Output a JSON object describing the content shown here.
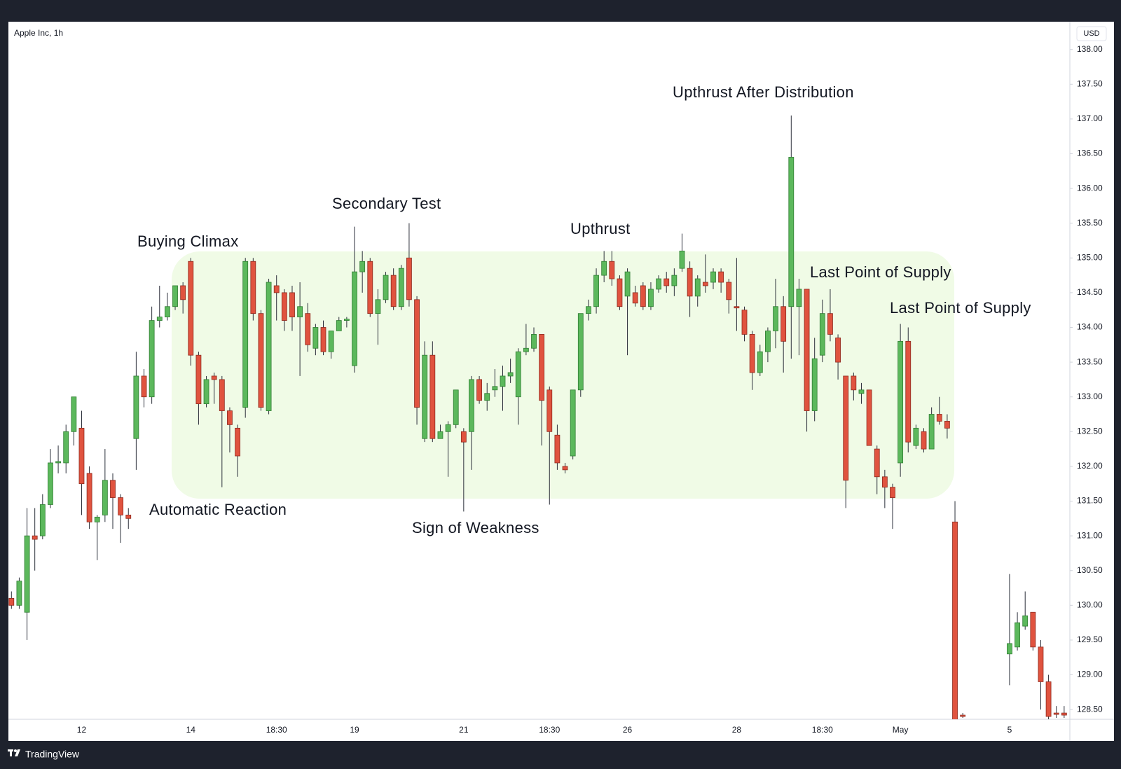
{
  "chart_data": {
    "type": "candlestick",
    "title": "Apple Inc, 1h",
    "currency": "USD",
    "categories": [
      null,
      null,
      null,
      null,
      null,
      null,
      null,
      null,
      null,
      "12",
      null,
      null,
      null,
      null,
      null,
      null,
      null,
      null,
      null,
      null,
      null,
      null,
      null,
      "14",
      null,
      null,
      null,
      null,
      null,
      null,
      null,
      null,
      null,
      null,
      "18:30",
      null,
      null,
      null,
      null,
      null,
      null,
      null,
      null,
      null,
      "19",
      null,
      null,
      null,
      null,
      null,
      null,
      null,
      null,
      null,
      null,
      null,
      null,
      null,
      "21",
      null,
      null,
      null,
      null,
      null,
      null,
      null,
      null,
      null,
      null,
      "18:30",
      null,
      null,
      null,
      null,
      null,
      null,
      null,
      null,
      null,
      "26",
      null,
      null,
      null,
      null,
      null,
      null,
      null,
      null,
      null,
      null,
      null,
      null,
      null,
      "28",
      null,
      null,
      null,
      null,
      null,
      null,
      null,
      null,
      null,
      null,
      "18:30",
      null,
      null,
      null,
      null,
      null,
      null,
      null,
      null,
      null,
      "May",
      null,
      null,
      null,
      null,
      null,
      null,
      null,
      null,
      null,
      null,
      null,
      null,
      null,
      "5",
      null,
      null,
      null,
      null,
      null,
      null,
      null
    ],
    "open": [
      130.1,
      130.0,
      129.9,
      131.0,
      131.0,
      131.45,
      132.05,
      132.05,
      132.5,
      132.55,
      131.9,
      131.2,
      131.3,
      131.8,
      131.55,
      131.3,
      132.4,
      133.3,
      133.0,
      134.1,
      134.15,
      134.3,
      134.6,
      134.95,
      133.6,
      132.9,
      133.3,
      133.25,
      132.8,
      132.55,
      132.85,
      134.95,
      134.2,
      132.8,
      134.6,
      134.5,
      134.5,
      134.15,
      134.2,
      133.7,
      134.0,
      133.65,
      133.95,
      134.1,
      133.45,
      134.8,
      134.95,
      134.2,
      134.4,
      134.75,
      134.3,
      135.0,
      134.4,
      132.4,
      133.6,
      132.4,
      132.5,
      132.6,
      132.5,
      132.5,
      133.25,
      132.95,
      133.1,
      133.15,
      133.3,
      133.0,
      133.65,
      133.7,
      133.9,
      133.1,
      132.45,
      132.0,
      132.15,
      133.1,
      134.2,
      134.3,
      134.75,
      134.95,
      134.7,
      134.45,
      134.5,
      134.6,
      134.3,
      134.55,
      134.7,
      134.6,
      134.85,
      134.85,
      134.45,
      134.65,
      134.65,
      134.8,
      134.65,
      134.3,
      134.25,
      133.9,
      133.35,
      133.65,
      133.95,
      134.3,
      134.3,
      134.3,
      134.55,
      132.8,
      133.6,
      134.2,
      133.85,
      133.3,
      133.3,
      133.05,
      133.1,
      132.25,
      131.85,
      131.7,
      132.05,
      133.8,
      132.3,
      132.5,
      132.25,
      132.75,
      132.65,
      131.2,
      128.42,
      null,
      null,
      null,
      null,
      null,
      129.3,
      129.4,
      129.7,
      129.9,
      129.4,
      128.9,
      128.45,
      128.45
    ],
    "high": [
      130.2,
      130.4,
      131.4,
      131.4,
      131.6,
      132.25,
      132.3,
      132.6,
      133.0,
      132.8,
      132.0,
      131.3,
      132.25,
      131.9,
      131.6,
      131.4,
      133.65,
      133.4,
      134.3,
      134.6,
      134.5,
      134.6,
      134.65,
      135.0,
      133.65,
      133.3,
      133.35,
      133.3,
      132.85,
      132.6,
      135.0,
      135.0,
      134.25,
      134.7,
      134.75,
      134.55,
      134.6,
      134.65,
      134.35,
      134.05,
      134.1,
      133.95,
      134.15,
      134.15,
      135.45,
      135.1,
      135.0,
      134.55,
      134.8,
      134.85,
      134.9,
      135.5,
      134.45,
      133.8,
      133.8,
      132.6,
      132.65,
      133.1,
      132.55,
      133.3,
      133.3,
      133.2,
      133.4,
      133.45,
      133.55,
      133.7,
      134.05,
      134.0,
      133.9,
      133.15,
      132.6,
      132.05,
      133.1,
      134.2,
      134.4,
      134.85,
      135.1,
      135.1,
      134.75,
      134.85,
      134.6,
      134.65,
      134.65,
      134.75,
      134.8,
      134.85,
      135.35,
      134.95,
      134.75,
      135.05,
      134.85,
      134.85,
      134.7,
      135.0,
      134.3,
      133.95,
      133.75,
      134.0,
      134.7,
      134.45,
      137.05,
      134.7,
      134.55,
      133.85,
      134.4,
      134.55,
      133.9,
      133.3,
      133.35,
      133.2,
      133.1,
      132.3,
      131.95,
      131.75,
      134.05,
      134.0,
      132.6,
      132.55,
      132.85,
      133.0,
      132.75,
      131.5,
      128.45,
      null,
      null,
      null,
      null,
      null,
      130.45,
      129.9,
      130.2,
      129.9,
      129.5,
      129.0,
      128.55,
      128.55
    ],
    "low": [
      129.95,
      129.95,
      129.5,
      130.5,
      130.95,
      131.4,
      131.9,
      131.9,
      132.3,
      131.3,
      131.1,
      130.65,
      131.2,
      131.1,
      130.9,
      131.1,
      131.95,
      132.85,
      132.9,
      134.0,
      134.1,
      134.25,
      134.2,
      133.45,
      132.6,
      132.85,
      132.9,
      131.7,
      132.2,
      131.85,
      132.7,
      134.1,
      132.8,
      132.75,
      134.1,
      133.95,
      133.95,
      133.3,
      133.65,
      133.6,
      133.6,
      133.55,
      133.95,
      134.0,
      133.35,
      134.5,
      134.15,
      133.75,
      134.35,
      134.25,
      134.25,
      134.3,
      132.6,
      132.35,
      132.35,
      132.4,
      131.85,
      132.55,
      131.35,
      131.95,
      132.9,
      132.8,
      133.0,
      132.8,
      133.2,
      132.6,
      133.6,
      133.65,
      132.3,
      131.45,
      131.95,
      131.9,
      132.1,
      133.0,
      134.1,
      134.2,
      134.65,
      134.6,
      134.25,
      133.6,
      134.3,
      134.25,
      134.25,
      134.5,
      134.5,
      134.45,
      134.8,
      134.15,
      134.3,
      134.5,
      134.55,
      134.5,
      134.2,
      133.95,
      133.8,
      133.1,
      133.3,
      133.5,
      133.7,
      133.35,
      133.55,
      133.6,
      132.5,
      132.65,
      133.5,
      133.8,
      133.25,
      131.4,
      132.95,
      132.9,
      132.3,
      131.6,
      131.4,
      131.1,
      131.85,
      132.2,
      132.25,
      132.2,
      132.25,
      132.6,
      132.4,
      128.3,
      128.38,
      null,
      null,
      null,
      null,
      null,
      128.85,
      129.35,
      129.65,
      129.35,
      128.5,
      128.35,
      128.38,
      128.38
    ],
    "close": [
      130.0,
      130.35,
      131.0,
      130.95,
      131.45,
      132.05,
      132.07,
      132.5,
      133.0,
      131.75,
      131.2,
      131.27,
      131.8,
      131.55,
      131.3,
      131.25,
      133.3,
      133.0,
      134.1,
      134.15,
      134.3,
      134.6,
      134.4,
      133.6,
      132.9,
      133.25,
      133.25,
      132.8,
      132.6,
      132.15,
      134.95,
      134.2,
      132.85,
      134.65,
      134.5,
      134.1,
      134.15,
      134.3,
      133.75,
      134.0,
      133.65,
      133.95,
      134.1,
      134.12,
      134.8,
      134.95,
      134.2,
      134.4,
      134.75,
      134.3,
      134.85,
      134.4,
      132.85,
      133.6,
      132.4,
      132.5,
      132.6,
      133.1,
      132.35,
      133.25,
      132.95,
      133.05,
      133.15,
      133.3,
      133.35,
      133.65,
      133.7,
      133.9,
      132.95,
      132.5,
      132.05,
      131.95,
      133.1,
      134.2,
      134.3,
      134.75,
      134.95,
      134.7,
      134.3,
      134.8,
      134.35,
      134.3,
      134.55,
      134.7,
      134.6,
      134.75,
      135.1,
      134.45,
      134.7,
      134.6,
      134.8,
      134.65,
      134.4,
      134.28,
      133.9,
      133.35,
      133.65,
      133.95,
      134.3,
      133.8,
      136.45,
      134.55,
      132.8,
      133.55,
      134.2,
      133.9,
      133.5,
      131.8,
      133.1,
      133.1,
      132.3,
      131.85,
      131.7,
      131.55,
      133.8,
      132.35,
      132.55,
      132.25,
      132.75,
      132.65,
      132.55,
      128.3,
      128.4,
      null,
      null,
      null,
      null,
      null,
      129.45,
      129.75,
      129.85,
      129.4,
      128.9,
      128.4,
      128.43,
      128.42
    ],
    "up_color": "#5cb85c",
    "down_color": "#e0533f",
    "ylim": [
      128.36,
      138.4
    ],
    "yticks": [
      {
        "value": 128.5,
        "label": "128.50"
      },
      {
        "value": 129,
        "label": "129.00"
      },
      {
        "value": 129.5,
        "label": "129.50"
      },
      {
        "value": 130,
        "label": "130.00"
      },
      {
        "value": 130.5,
        "label": "130.50"
      },
      {
        "value": 131,
        "label": "131.00"
      },
      {
        "value": 131.5,
        "label": "131.50"
      },
      {
        "value": 132,
        "label": "132.00"
      },
      {
        "value": 132.5,
        "label": "132.50"
      },
      {
        "value": 133,
        "label": "133.00"
      },
      {
        "value": 133.5,
        "label": "133.50"
      },
      {
        "value": 134,
        "label": "134.00"
      },
      {
        "value": 134.5,
        "label": "134.50"
      },
      {
        "value": 135,
        "label": "135.00"
      },
      {
        "value": 135.5,
        "label": "135.50"
      },
      {
        "value": 136,
        "label": "136.00"
      },
      {
        "value": 136.5,
        "label": "136.50"
      },
      {
        "value": 137,
        "label": "137.00"
      },
      {
        "value": 137.5,
        "label": "137.50"
      },
      {
        "value": 138,
        "label": "138.00"
      }
    ],
    "grid": false,
    "annotations": [
      "Buying Climax",
      "Automatic Reaction",
      "Secondary Test",
      "Sign of Weakness",
      "Upthrust",
      "Upthrust After Distribution",
      "Last Point of Supply",
      "Last Point of Supply"
    ]
  },
  "footer": {
    "brand": "TradingView"
  }
}
